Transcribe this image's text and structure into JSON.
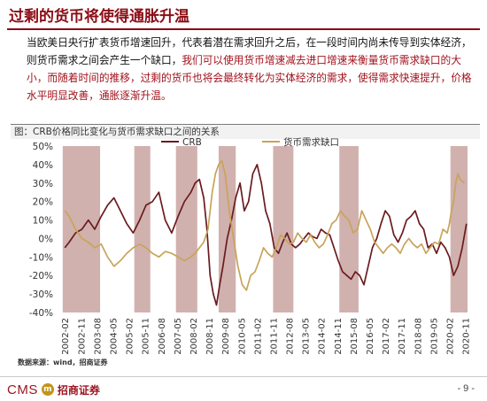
{
  "header": {
    "title": "过剩的货币将使得通胀升温"
  },
  "paragraph": {
    "part1": "当欧美日央行扩表货币增速回升，代表着潜在需求回升之后，在一段时间内尚未传导到实体经济，则货币需求之间会产生一个缺口，",
    "part2": "我们可以使用货币增速减去进口增速来衡量货币需求缺口的大小，而随着时间的推移，过剩的货币也将会最终转化为实体经济的需求，使得需求快速提升，价格水平明显改善，通胀逐渐升温。"
  },
  "chart_title": "图：CRB价格同比变化与货币需求缺口之间的关系",
  "source": "数据来源：wind，招商证券",
  "footer": {
    "logo_text": "CMS",
    "logo_mark": "m",
    "logo_cn": "招商证券",
    "page": "- 9 -"
  },
  "colors": {
    "brand": "#8b0d15",
    "crb": "#6b1b1f",
    "gap": "#c8a45a",
    "shade": "#c9a3a0"
  },
  "chart_data": {
    "type": "line",
    "title": "图：CRB价格同比变化与货币需求缺口之间的关系",
    "ylim": [
      -40,
      50
    ],
    "yticks": [
      -40,
      -30,
      -20,
      -10,
      0,
      10,
      20,
      30,
      40,
      50
    ],
    "ytick_labels": [
      "-40%",
      "-30%",
      "-20%",
      "-10%",
      "0%",
      "10%",
      "20%",
      "30%",
      "40%",
      "50%"
    ],
    "xlim": [
      2001.8,
      2020.95
    ],
    "xtick_labels": [
      "2002-02",
      "2002-11",
      "2003-08",
      "2004-05",
      "2005-02",
      "2005-11",
      "2006-08",
      "2007-05",
      "2008-02",
      "2008-11",
      "2009-08",
      "2010-05",
      "2011-02",
      "2011-11",
      "2012-08",
      "2013-05",
      "2014-02",
      "2014-11",
      "2015-08",
      "2016-05",
      "2017-02",
      "2017-11",
      "2018-08",
      "2019-05",
      "2020-02",
      "2020-11"
    ],
    "grid": false,
    "legend_position": "top-center",
    "shaded_periods": [
      [
        2002.0,
        2003.75
      ],
      [
        2005.35,
        2006.1
      ],
      [
        2007.3,
        2008.3
      ],
      [
        2009.3,
        2010.1
      ],
      [
        2011.85,
        2012.8
      ],
      [
        2014.95,
        2015.85
      ],
      [
        2020.15,
        2020.95
      ]
    ],
    "series": [
      {
        "name": "CRB",
        "x": [
          2002.1,
          2002.3,
          2002.6,
          2002.9,
          2003.2,
          2003.5,
          2003.8,
          2004.1,
          2004.4,
          2004.7,
          2005.0,
          2005.3,
          2005.6,
          2005.9,
          2006.2,
          2006.5,
          2006.8,
          2007.1,
          2007.4,
          2007.7,
          2008.0,
          2008.2,
          2008.4,
          2008.6,
          2008.75,
          2008.9,
          2009.05,
          2009.2,
          2009.35,
          2009.5,
          2009.7,
          2009.9,
          2010.1,
          2010.3,
          2010.5,
          2010.7,
          2010.9,
          2011.1,
          2011.3,
          2011.5,
          2011.7,
          2011.9,
          2012.1,
          2012.3,
          2012.5,
          2012.7,
          2012.9,
          2013.1,
          2013.3,
          2013.5,
          2013.7,
          2013.9,
          2014.1,
          2014.3,
          2014.5,
          2014.7,
          2014.9,
          2015.1,
          2015.3,
          2015.5,
          2015.7,
          2015.9,
          2016.1,
          2016.3,
          2016.5,
          2016.7,
          2016.9,
          2017.1,
          2017.3,
          2017.5,
          2017.7,
          2017.9,
          2018.1,
          2018.3,
          2018.5,
          2018.7,
          2018.9,
          2019.1,
          2019.3,
          2019.5,
          2019.7,
          2019.9,
          2020.1,
          2020.3,
          2020.5,
          2020.7,
          2020.9
        ],
        "y": [
          -5,
          -2,
          3,
          5,
          10,
          5,
          12,
          18,
          22,
          15,
          8,
          3,
          10,
          18,
          20,
          25,
          10,
          3,
          12,
          20,
          25,
          30,
          32,
          22,
          5,
          -20,
          -30,
          -36,
          -25,
          -15,
          0,
          10,
          22,
          30,
          15,
          20,
          35,
          40,
          30,
          15,
          8,
          -5,
          -8,
          -2,
          3,
          -3,
          -5,
          -3,
          0,
          3,
          1,
          0,
          5,
          3,
          2,
          -5,
          -12,
          -18,
          -20,
          -22,
          -18,
          -20,
          -25,
          -15,
          -5,
          0,
          8,
          15,
          12,
          2,
          -2,
          3,
          10,
          12,
          15,
          8,
          5,
          -5,
          -3,
          -8,
          -2,
          -5,
          -10,
          -20,
          -15,
          -5,
          8
        ]
      },
      {
        "name": "货币需求缺口",
        "x": [
          2002.1,
          2002.3,
          2002.6,
          2002.9,
          2003.2,
          2003.5,
          2003.8,
          2004.1,
          2004.4,
          2004.7,
          2005.0,
          2005.3,
          2005.6,
          2005.9,
          2006.2,
          2006.5,
          2006.8,
          2007.1,
          2007.4,
          2007.7,
          2008.0,
          2008.2,
          2008.4,
          2008.6,
          2008.8,
          2009.0,
          2009.15,
          2009.3,
          2009.45,
          2009.6,
          2009.8,
          2010.0,
          2010.2,
          2010.4,
          2010.6,
          2010.8,
          2011.0,
          2011.2,
          2011.4,
          2011.6,
          2011.8,
          2012.0,
          2012.2,
          2012.4,
          2012.6,
          2012.8,
          2013.0,
          2013.2,
          2013.4,
          2013.6,
          2013.8,
          2014.0,
          2014.2,
          2014.4,
          2014.6,
          2014.8,
          2015.0,
          2015.2,
          2015.4,
          2015.6,
          2015.8,
          2016.0,
          2016.2,
          2016.4,
          2016.6,
          2016.8,
          2017.0,
          2017.2,
          2017.4,
          2017.6,
          2017.8,
          2018.0,
          2018.2,
          2018.4,
          2018.6,
          2018.8,
          2019.0,
          2019.2,
          2019.4,
          2019.6,
          2019.8,
          2020.0,
          2020.1,
          2020.2,
          2020.3,
          2020.4,
          2020.5,
          2020.6,
          2020.8
        ],
        "y": [
          15,
          12,
          5,
          0,
          -2,
          -5,
          -3,
          -10,
          -15,
          -12,
          -8,
          -5,
          -3,
          -5,
          -8,
          -10,
          -7,
          -8,
          -10,
          -12,
          -10,
          -8,
          -5,
          -2,
          5,
          25,
          35,
          40,
          42,
          35,
          15,
          0,
          -15,
          -25,
          -28,
          -20,
          -18,
          -12,
          -5,
          -8,
          -10,
          -5,
          2,
          0,
          -3,
          -2,
          3,
          0,
          -2,
          2,
          -2,
          -5,
          -3,
          2,
          8,
          10,
          15,
          12,
          10,
          3,
          5,
          15,
          10,
          5,
          -2,
          -5,
          -8,
          -5,
          -3,
          -5,
          -8,
          -3,
          0,
          -3,
          -5,
          -3,
          -8,
          -5,
          -2,
          -3,
          5,
          3,
          8,
          15,
          20,
          30,
          35,
          32,
          30
        ]
      }
    ]
  }
}
